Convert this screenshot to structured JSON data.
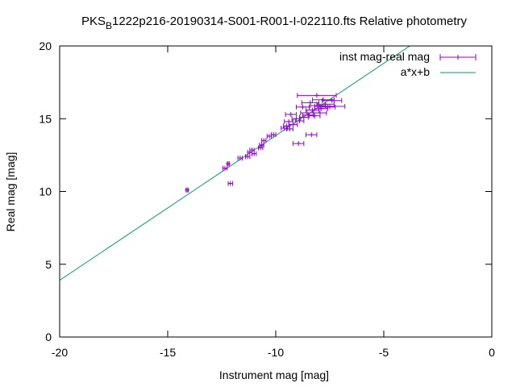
{
  "chart_data": {
    "type": "scatter",
    "title_main": "PKS",
    "title_sub": "B",
    "title_rest": "1222p216-20190314-S001-R001-I-022110.fts Relative photometry",
    "xlabel": "Instrument mag [mag]",
    "ylabel": "Real mag [mag]",
    "xlim": [
      -20,
      0
    ],
    "ylim": [
      0,
      20
    ],
    "xticks": [
      -20,
      -15,
      -10,
      -5,
      0
    ],
    "yticks": [
      0,
      5,
      10,
      15,
      20
    ],
    "legend_position": "top-right",
    "grid": false,
    "series": [
      {
        "name": "inst mag-real mag",
        "kind": "errorbars",
        "color": "#9400d3",
        "points": [
          {
            "x": -14.1,
            "y": 10.1,
            "xerr": 0.05
          },
          {
            "x": -12.35,
            "y": 11.6,
            "xerr": 0.1
          },
          {
            "x": -12.2,
            "y": 11.9,
            "xerr": 0.05
          },
          {
            "x": -12.1,
            "y": 10.55,
            "xerr": 0.1
          },
          {
            "x": -11.65,
            "y": 12.3,
            "xerr": 0.1
          },
          {
            "x": -11.3,
            "y": 12.4,
            "xerr": 0.1
          },
          {
            "x": -11.2,
            "y": 12.7,
            "xerr": 0.1
          },
          {
            "x": -11.1,
            "y": 12.85,
            "xerr": 0.1
          },
          {
            "x": -11.0,
            "y": 12.6,
            "xerr": 0.1
          },
          {
            "x": -10.7,
            "y": 13.0,
            "xerr": 0.1
          },
          {
            "x": -10.65,
            "y": 13.2,
            "xerr": 0.1
          },
          {
            "x": -10.55,
            "y": 13.5,
            "xerr": 0.1
          },
          {
            "x": -10.3,
            "y": 13.8,
            "xerr": 0.1
          },
          {
            "x": -10.1,
            "y": 13.9,
            "xerr": 0.1
          },
          {
            "x": -9.6,
            "y": 14.35,
            "xerr": 0.15
          },
          {
            "x": -9.5,
            "y": 14.5,
            "xerr": 0.15
          },
          {
            "x": -9.4,
            "y": 14.8,
            "xerr": 0.2
          },
          {
            "x": -9.35,
            "y": 14.3,
            "xerr": 0.15
          },
          {
            "x": -9.3,
            "y": 15.3,
            "xerr": 0.25
          },
          {
            "x": -9.2,
            "y": 14.6,
            "xerr": 0.2
          },
          {
            "x": -9.05,
            "y": 15.0,
            "xerr": 0.2
          },
          {
            "x": -8.95,
            "y": 13.3,
            "xerr": 0.25
          },
          {
            "x": -8.9,
            "y": 14.85,
            "xerr": 0.2
          },
          {
            "x": -8.75,
            "y": 15.8,
            "xerr": 0.3
          },
          {
            "x": -8.7,
            "y": 15.1,
            "xerr": 0.2
          },
          {
            "x": -8.55,
            "y": 15.4,
            "xerr": 0.3
          },
          {
            "x": -8.5,
            "y": 15.25,
            "xerr": 0.25
          },
          {
            "x": -8.4,
            "y": 16.1,
            "xerr": 0.4
          },
          {
            "x": -8.35,
            "y": 13.9,
            "xerr": 0.25
          },
          {
            "x": -8.3,
            "y": 15.6,
            "xerr": 0.3
          },
          {
            "x": -8.2,
            "y": 15.2,
            "xerr": 0.25
          },
          {
            "x": -8.1,
            "y": 16.6,
            "xerr": 0.9
          },
          {
            "x": -8.05,
            "y": 15.9,
            "xerr": 0.35
          },
          {
            "x": -7.95,
            "y": 15.4,
            "xerr": 0.3
          },
          {
            "x": -7.9,
            "y": 15.7,
            "xerr": 0.3
          },
          {
            "x": -7.8,
            "y": 16.3,
            "xerr": 0.5
          },
          {
            "x": -7.7,
            "y": 16.0,
            "xerr": 0.4
          },
          {
            "x": -7.6,
            "y": 15.8,
            "xerr": 0.35
          },
          {
            "x": -7.5,
            "y": 15.85,
            "xerr": 0.7
          },
          {
            "x": -7.4,
            "y": 16.25,
            "xerr": 0.45
          }
        ]
      },
      {
        "name": "a*x+b",
        "kind": "line",
        "color": "#009e73",
        "x": [
          -20,
          -3.8
        ],
        "y": [
          3.9,
          20
        ]
      }
    ]
  }
}
